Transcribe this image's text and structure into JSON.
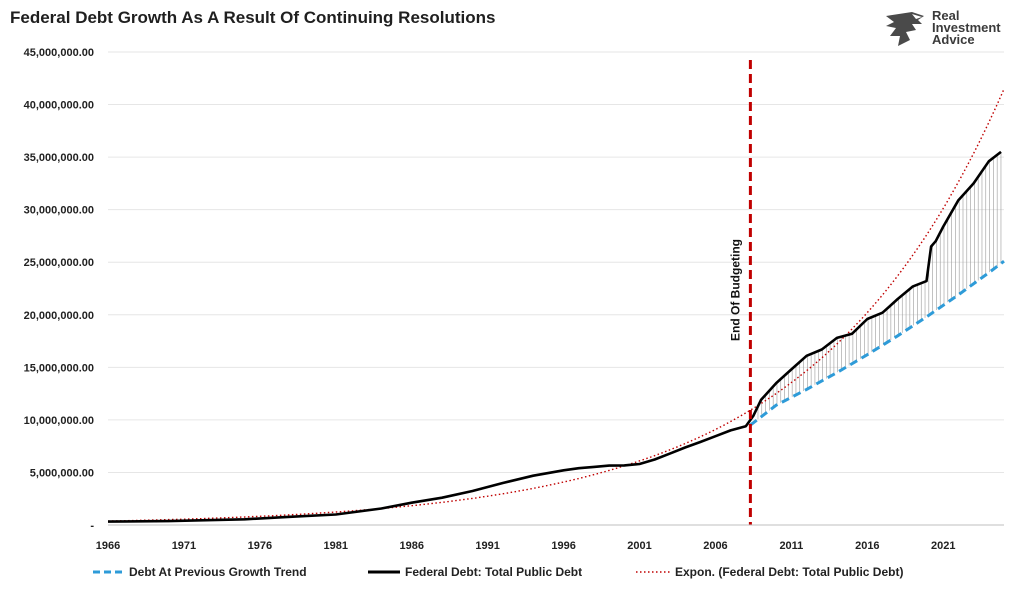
{
  "title": "Federal Debt Growth As A Result Of Continuing Resolutions",
  "logo": {
    "line1": "Real",
    "line2": "Investment",
    "line3": "Advice"
  },
  "chart_data": {
    "type": "line",
    "ylim": [
      0,
      45000000
    ],
    "xlim": [
      1966,
      2025
    ],
    "y_ticks": [
      "-",
      "5,000,000.00",
      "10,000,000.00",
      "15,000,000.00",
      "20,000,000.00",
      "25,000,000.00",
      "30,000,000.00",
      "35,000,000.00",
      "40,000,000.00",
      "45,000,000.00"
    ],
    "y_tick_values": [
      0,
      5000000,
      10000000,
      15000000,
      20000000,
      25000000,
      30000000,
      35000000,
      40000000,
      45000000
    ],
    "x_ticks": [
      "1966",
      "1971",
      "1976",
      "1981",
      "1986",
      "1991",
      "1996",
      "2001",
      "2006",
      "2011",
      "2016",
      "2021"
    ],
    "x_tick_values": [
      1966,
      1971,
      1976,
      1981,
      1986,
      1991,
      1996,
      2001,
      2006,
      2011,
      2016,
      2021
    ],
    "grid": "horizontal",
    "legend_position": "bottom",
    "annotation": {
      "text": "End Of Budgeting",
      "x": 2008.3
    },
    "colors": {
      "debt": "#000000",
      "trend": "#2e9bd8",
      "expon": "#c00000",
      "marker": "#c00000"
    },
    "series": [
      {
        "name": "Debt At Previous Growth Trend",
        "style": "dashed",
        "x": [
          2008.3,
          2010,
          2012,
          2014,
          2016,
          2018,
          2020,
          2022,
          2024,
          2025
        ],
        "values": [
          9500000,
          11400000,
          12900000,
          14500000,
          16200000,
          18000000,
          19900000,
          21900000,
          24000000,
          25100000
        ]
      },
      {
        "name": "Federal Debt: Total Public Debt",
        "style": "solid",
        "x": [
          1966,
          1970,
          1975,
          1978,
          1981,
          1984,
          1986,
          1988,
          1990,
          1992,
          1994,
          1996,
          1997,
          1998,
          1999,
          2000,
          2001,
          2002,
          2003,
          2004,
          2005,
          2006,
          2007,
          2008,
          2008.5,
          2009,
          2010,
          2011,
          2012,
          2013,
          2014,
          2015,
          2016,
          2017,
          2018,
          2019,
          2019.9,
          2020.2,
          2020.5,
          2021,
          2022,
          2023,
          2024,
          2024.8
        ],
        "values": [
          320000,
          370000,
          540000,
          780000,
          1000000,
          1570000,
          2120000,
          2600000,
          3230000,
          4000000,
          4690000,
          5200000,
          5400000,
          5530000,
          5650000,
          5670000,
          5800000,
          6230000,
          6790000,
          7370000,
          7900000,
          8450000,
          9000000,
          9400000,
          10400000,
          11900000,
          13500000,
          14800000,
          16100000,
          16700000,
          17800000,
          18200000,
          19600000,
          20200000,
          21500000,
          22700000,
          23200000,
          26500000,
          27000000,
          28400000,
          30900000,
          32500000,
          34600000,
          35500000
        ]
      },
      {
        "name": "Expon. (Federal Debt: Total Public Debt)",
        "style": "dotted",
        "function": "exp",
        "a": 372000,
        "b": 0.0799
      }
    ]
  }
}
